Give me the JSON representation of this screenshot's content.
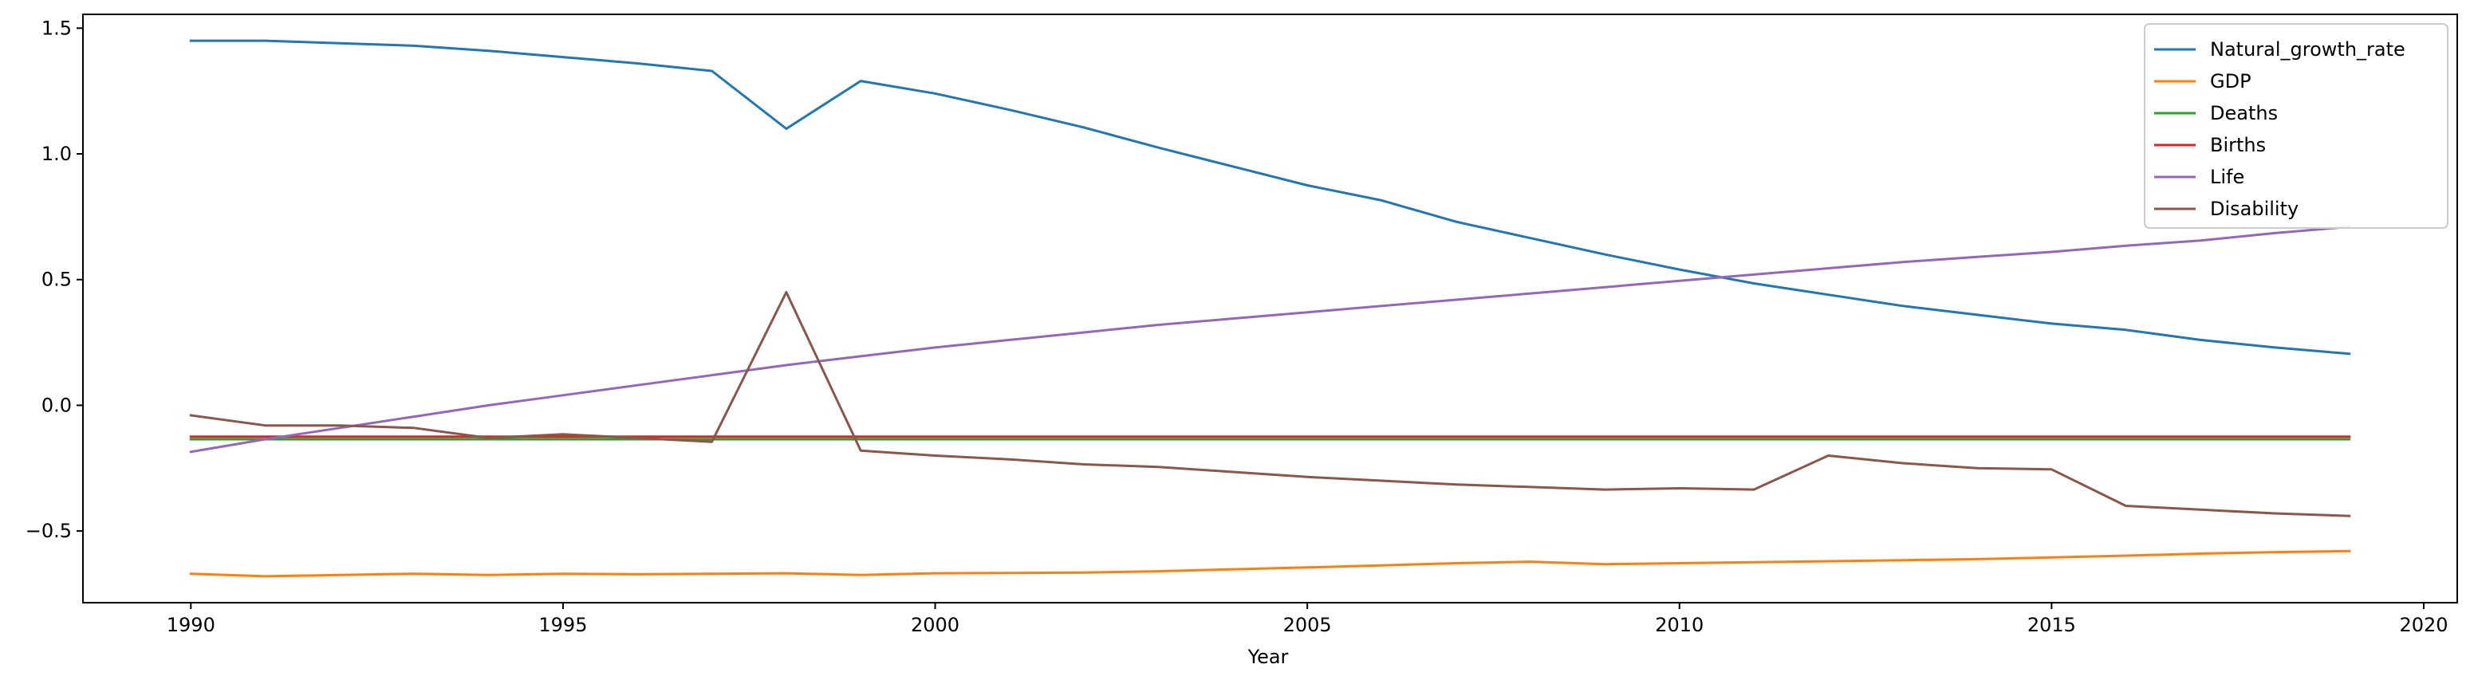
{
  "chart_data": {
    "type": "line",
    "title": "",
    "xlabel": "Year",
    "ylabel": "",
    "xlim": [
      1988.55,
      2020.45
    ],
    "ylim": [
      -0.785,
      1.555
    ],
    "xticks": [
      1990,
      1995,
      2000,
      2005,
      2010,
      2015,
      2020
    ],
    "yticks": [
      -0.5,
      0.0,
      0.5,
      1.0,
      1.5
    ],
    "ytick_labels": [
      "−0.5",
      "0.0",
      "0.5",
      "1.0",
      "1.5"
    ],
    "grid": false,
    "legend_position": "top-right",
    "x": [
      1990,
      1991,
      1992,
      1993,
      1994,
      1995,
      1996,
      1997,
      1998,
      1999,
      2000,
      2001,
      2002,
      2003,
      2004,
      2005,
      2006,
      2007,
      2008,
      2009,
      2010,
      2011,
      2012,
      2013,
      2014,
      2015,
      2016,
      2017,
      2018,
      2019
    ],
    "series": [
      {
        "name": "Natural_growth_rate",
        "color": "#1f77b4",
        "values": [
          1.45,
          1.45,
          1.44,
          1.43,
          1.41,
          1.385,
          1.36,
          1.33,
          1.1,
          1.29,
          1.24,
          1.175,
          1.105,
          1.025,
          0.95,
          0.875,
          0.815,
          0.73,
          0.665,
          0.6,
          0.54,
          0.485,
          0.44,
          0.395,
          0.36,
          0.325,
          0.3,
          0.26,
          0.23,
          0.205
        ]
      },
      {
        "name": "GDP",
        "color": "#ff7f0e",
        "values": [
          -0.67,
          -0.68,
          -0.675,
          -0.67,
          -0.675,
          -0.67,
          -0.672,
          -0.67,
          -0.668,
          -0.675,
          -0.668,
          -0.667,
          -0.665,
          -0.66,
          -0.652,
          -0.645,
          -0.637,
          -0.628,
          -0.622,
          -0.632,
          -0.628,
          -0.624,
          -0.62,
          -0.616,
          -0.612,
          -0.605,
          -0.598,
          -0.59,
          -0.584,
          -0.58
        ]
      },
      {
        "name": "Deaths",
        "color": "#2ca02c",
        "values": [
          -0.135,
          -0.135,
          -0.135,
          -0.135,
          -0.135,
          -0.135,
          -0.135,
          -0.135,
          -0.135,
          -0.135,
          -0.135,
          -0.135,
          -0.135,
          -0.135,
          -0.135,
          -0.135,
          -0.135,
          -0.135,
          -0.135,
          -0.135,
          -0.135,
          -0.135,
          -0.135,
          -0.135,
          -0.135,
          -0.135,
          -0.135,
          -0.135,
          -0.135,
          -0.135
        ]
      },
      {
        "name": "Births",
        "color": "#d62728",
        "values": [
          -0.125,
          -0.125,
          -0.125,
          -0.125,
          -0.125,
          -0.125,
          -0.125,
          -0.125,
          -0.125,
          -0.125,
          -0.125,
          -0.125,
          -0.125,
          -0.125,
          -0.125,
          -0.125,
          -0.125,
          -0.125,
          -0.125,
          -0.125,
          -0.125,
          -0.125,
          -0.125,
          -0.125,
          -0.125,
          -0.125,
          -0.125,
          -0.125,
          -0.125,
          -0.125
        ]
      },
      {
        "name": "Life",
        "color": "#9467bd",
        "values": [
          -0.185,
          -0.135,
          -0.09,
          -0.045,
          0.0,
          0.04,
          0.08,
          0.12,
          0.16,
          0.195,
          0.23,
          0.26,
          0.29,
          0.32,
          0.345,
          0.37,
          0.395,
          0.42,
          0.445,
          0.47,
          0.495,
          0.52,
          0.545,
          0.57,
          0.59,
          0.61,
          0.635,
          0.655,
          0.685,
          0.71
        ]
      },
      {
        "name": "Disability",
        "color": "#8c564b",
        "values": [
          -0.04,
          -0.08,
          -0.08,
          -0.09,
          -0.13,
          -0.115,
          -0.13,
          -0.145,
          0.45,
          -0.18,
          -0.2,
          -0.215,
          -0.235,
          -0.245,
          -0.265,
          -0.285,
          -0.3,
          -0.315,
          -0.325,
          -0.335,
          -0.33,
          -0.335,
          -0.2,
          -0.23,
          -0.25,
          -0.255,
          -0.4,
          -0.415,
          -0.43,
          -0.44
        ]
      }
    ]
  }
}
